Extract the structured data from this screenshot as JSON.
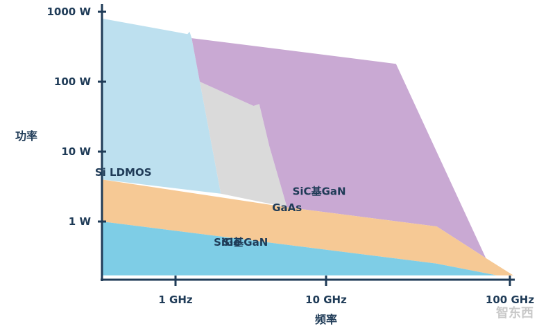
{
  "chart_data": {
    "type": "area",
    "title": "",
    "xlabel": "频率",
    "ylabel": "功率",
    "x_scale": "log",
    "y_scale": "log",
    "x_ticks": [
      {
        "value": 1,
        "label": "1 GHz"
      },
      {
        "value": 10,
        "label": "10 GHz"
      },
      {
        "value": 100,
        "label": "100 GHz"
      }
    ],
    "y_ticks": [
      {
        "value": 1,
        "label": "1 W"
      },
      {
        "value": 10,
        "label": "10 W"
      },
      {
        "value": 100,
        "label": "100 W"
      },
      {
        "value": 1000,
        "label": "1000 W"
      }
    ],
    "xlim_ghz": [
      0.1,
      150
    ],
    "ylim_w": [
      0.15,
      1500
    ],
    "grid": false,
    "legend": "none",
    "regions": [
      {
        "name": "Si LDMOS",
        "color": "#bde0ef",
        "label_at": [
          0.45,
          4.5
        ],
        "polygon": [
          [
            0.1,
            800
          ],
          [
            1.2,
            480
          ],
          [
            1.24,
            520
          ],
          [
            1.28,
            420
          ],
          [
            1.45,
            100
          ],
          [
            2.0,
            2.5
          ],
          [
            0.1,
            4
          ]
        ]
      },
      {
        "name": "Si基GaN",
        "color": "#dadada",
        "label_at": [
          2.9,
          0.45
        ],
        "polygon": [
          [
            1.45,
            100
          ],
          [
            3.3,
            45
          ],
          [
            3.6,
            48
          ],
          [
            4.2,
            12
          ],
          [
            5.5,
            1.6
          ],
          [
            2.0,
            2.5
          ]
        ]
      },
      {
        "name": "SiC基GaN",
        "color": "#c9a9d3",
        "label_at": [
          9,
          2.4
        ],
        "polygon": [
          [
            1.28,
            420
          ],
          [
            24,
            180
          ],
          [
            74,
            0.3
          ],
          [
            40,
            0.85
          ],
          [
            5.5,
            1.6
          ],
          [
            4.2,
            12
          ],
          [
            3.6,
            48
          ],
          [
            3.3,
            45
          ],
          [
            1.45,
            100
          ]
        ]
      },
      {
        "name": "GaAs",
        "color": "#f6c995",
        "label_at": [
          5.5,
          1.4
        ],
        "polygon": [
          [
            0.1,
            4
          ],
          [
            5.5,
            1.6
          ],
          [
            40,
            0.85
          ],
          [
            74,
            0.3
          ],
          [
            105,
            0.17
          ],
          [
            85,
            0.17
          ],
          [
            40,
            0.25
          ],
          [
            0.1,
            1
          ]
        ]
      },
      {
        "name": "SiGe",
        "color": "#7ecde6",
        "label_at": [
          2.2,
          0.45
        ],
        "polygon": [
          [
            0.1,
            1
          ],
          [
            40,
            0.25
          ],
          [
            85,
            0.17
          ],
          [
            0.1,
            0.17
          ]
        ]
      }
    ],
    "label_text": {
      "Si LDMOS": "Si LDMOS",
      "Si基GaN": "Si基GaN",
      "SiC基GaN": "SiC基GaN",
      "GaAs": "GaAs",
      "SiGe": "SiGe"
    }
  },
  "watermark": "智东西",
  "colors": {
    "axis": "#1f3b57",
    "background": "#ffffff"
  }
}
